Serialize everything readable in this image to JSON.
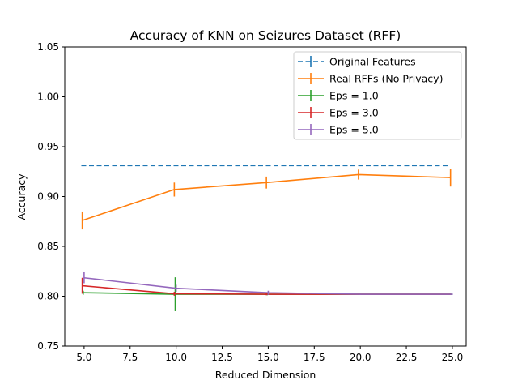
{
  "chart_data": {
    "type": "line",
    "title": "Accuracy of KNN on Seizures Dataset (RFF)",
    "xlabel": "Reduced Dimension",
    "ylabel": "Accuracy",
    "xlim": [
      3.95,
      25.75
    ],
    "ylim": [
      0.75,
      1.05
    ],
    "xticks": [
      5.0,
      7.5,
      10.0,
      12.5,
      15.0,
      17.5,
      20.0,
      22.5,
      25.0
    ],
    "xtick_labels": [
      "5.0",
      "7.5",
      "10.0",
      "12.5",
      "15.0",
      "17.5",
      "20.0",
      "22.5",
      "25.0"
    ],
    "yticks": [
      0.75,
      0.8,
      0.85,
      0.9,
      0.95,
      1.0,
      1.05
    ],
    "ytick_labels": [
      "0.75",
      "0.80",
      "0.85",
      "0.90",
      "0.95",
      "1.00",
      "1.05"
    ],
    "grid": false,
    "legend_position": "top-right",
    "series": [
      {
        "name": "Original Features",
        "color": "#1f77b4",
        "linestyle": "dashed",
        "x": [
          4.85,
          9.85,
          14.85,
          19.85,
          24.85
        ],
        "y": [
          0.931,
          0.931,
          0.931,
          0.931,
          0.931
        ],
        "err": [
          0,
          0,
          0,
          0,
          0
        ]
      },
      {
        "name": "Real RFFs (No Privacy)",
        "color": "#ff7f0e",
        "linestyle": "solid",
        "x": [
          4.9,
          9.9,
          14.9,
          19.9,
          24.9
        ],
        "y": [
          0.876,
          0.907,
          0.914,
          0.922,
          0.919
        ],
        "err": [
          0.009,
          0.007,
          0.006,
          0.005,
          0.009
        ]
      },
      {
        "name": "Eps = 1.0",
        "color": "#2ca02c",
        "linestyle": "solid",
        "x": [
          4.95,
          9.95,
          14.95,
          19.95,
          24.95
        ],
        "y": [
          0.8035,
          0.802,
          0.802,
          0.802,
          0.802
        ],
        "err": [
          0.002,
          0.017,
          0.001,
          0.0005,
          0.0005
        ]
      },
      {
        "name": "Eps = 3.0",
        "color": "#d62728",
        "linestyle": "solid",
        "x": [
          4.9,
          9.9,
          14.9,
          19.9,
          24.9
        ],
        "y": [
          0.8105,
          0.8025,
          0.802,
          0.802,
          0.802
        ],
        "err": [
          0.008,
          0.002,
          0.001,
          0.0005,
          0.0005
        ]
      },
      {
        "name": "Eps = 5.0",
        "color": "#9467bd",
        "linestyle": "solid",
        "x": [
          5.0,
          10.0,
          15.0,
          20.0,
          25.0
        ],
        "y": [
          0.8185,
          0.808,
          0.8035,
          0.802,
          0.802
        ],
        "err": [
          0.0055,
          0.0035,
          0.002,
          0.0005,
          0.0005
        ]
      }
    ]
  }
}
